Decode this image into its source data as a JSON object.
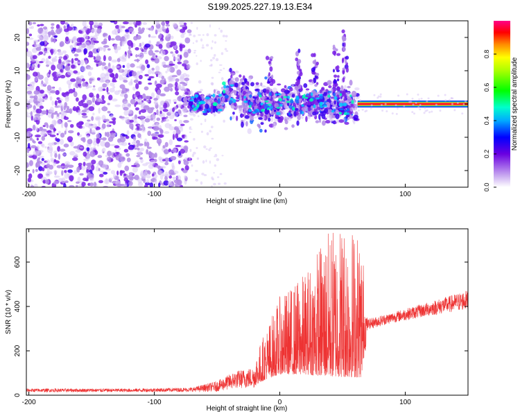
{
  "title": "S199.2025.227.19.13.E34",
  "chart_data": [
    {
      "type": "heatmap",
      "name": "spectrogram",
      "xlabel": "Height of straight line (km)",
      "ylabel": "Frequency (Hz)",
      "xlim": [
        -202,
        150
      ],
      "ylim": [
        -25,
        25
      ],
      "xticks": [
        -200,
        -100,
        0,
        100
      ],
      "yticks": [
        -20,
        -10,
        0,
        10,
        20
      ],
      "colorbar": {
        "label": "Normalized spectral amplitude",
        "range": [
          0,
          1
        ],
        "ticks": [
          0.0,
          0.2,
          0.4,
          0.6,
          0.8
        ],
        "tick_labels": [
          "0.0",
          "0.2",
          "0.4",
          "0.6",
          "0.8"
        ]
      },
      "regions": [
        {
          "x_range": [
            -202,
            -72
          ],
          "description": "broadband scattered noise, low amplitude",
          "y_spread": 25
        },
        {
          "x_range": [
            -72,
            62
          ],
          "description": "energy concentrated around 0 Hz with spread",
          "y_spread": 12
        },
        {
          "x_range": [
            62,
            150
          ],
          "description": "narrow strong line at 0 Hz (amplitude ~0.9)",
          "y_spread": 1
        }
      ]
    },
    {
      "type": "line",
      "name": "snr",
      "xlabel": "Height of straight line (km)",
      "ylabel": "SNR (10 * v/v)",
      "xlim": [
        -202,
        150
      ],
      "ylim": [
        0,
        750
      ],
      "xticks": [
        -200,
        -100,
        0,
        100
      ],
      "yticks": [
        0,
        200,
        400,
        600
      ],
      "color": "#ee3333",
      "envelope": [
        {
          "x": -202,
          "mean": 22,
          "spread": 10
        },
        {
          "x": -120,
          "mean": 22,
          "spread": 10
        },
        {
          "x": -70,
          "mean": 25,
          "spread": 12
        },
        {
          "x": -50,
          "mean": 40,
          "spread": 30
        },
        {
          "x": -35,
          "mean": 70,
          "spread": 50
        },
        {
          "x": -20,
          "mean": 80,
          "spread": 60
        },
        {
          "x": -10,
          "mean": 140,
          "spread": 110
        },
        {
          "x": 0,
          "mean": 190,
          "spread": 160
        },
        {
          "x": 20,
          "mean": 220,
          "spread": 210
        },
        {
          "x": 35,
          "mean": 260,
          "spread": 290
        },
        {
          "x": 50,
          "mean": 280,
          "spread": 330
        },
        {
          "x": 65,
          "mean": 260,
          "spread": 300
        },
        {
          "x": 70,
          "mean": 320,
          "spread": 30
        },
        {
          "x": 90,
          "mean": 350,
          "spread": 30
        },
        {
          "x": 120,
          "mean": 390,
          "spread": 40
        },
        {
          "x": 150,
          "mean": 430,
          "spread": 55
        }
      ]
    }
  ]
}
